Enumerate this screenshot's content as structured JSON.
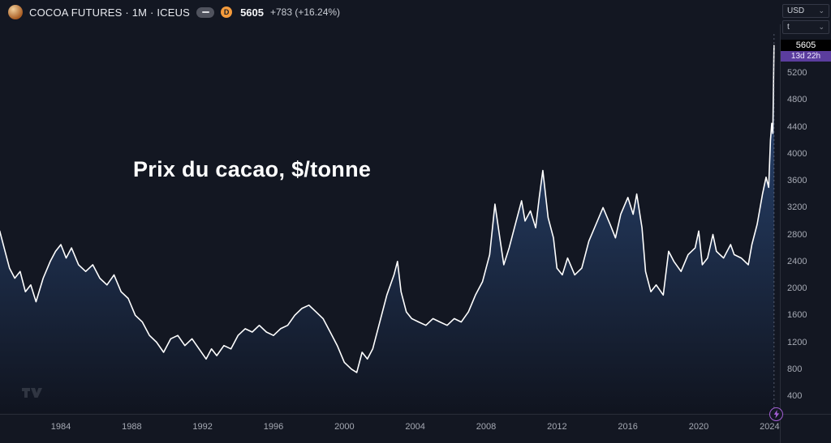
{
  "toolbar": {
    "symbol_title": "COCOA FUTURES · 1M · ICEUS",
    "delayed_badge": "D",
    "last_price": "5605",
    "change": "+783 (+16.24%)"
  },
  "dropdowns": {
    "currency": "USD",
    "unit": "t"
  },
  "price_scale": {
    "last": "5605",
    "countdown": "13d 22h"
  },
  "overlay": {
    "title": "Prix du cacao, $/tonne"
  },
  "colors": {
    "background": "#131722",
    "line": "#ffffff",
    "fill_top": "#2c4b7c",
    "fill_bottom": "#10141f",
    "accent_purple": "#a55fd6",
    "delayed_orange": "#f59b3c",
    "countdown_bg": "#5b3d9e",
    "axis_text": "#a6aab4"
  },
  "chart_data": {
    "type": "area",
    "name": "COCOA FUTURES · 1M · ICEUS",
    "title": "Prix du cacao, $/tonne",
    "unit": "USD/tonne",
    "grid": false,
    "last_value": 5605,
    "ylim": [
      300,
      5750
    ],
    "xlim": [
      1980.5,
      2024.6
    ],
    "y_ticks": [
      5200,
      4800,
      4400,
      4000,
      3600,
      3200,
      2800,
      2400,
      2000,
      1600,
      1200,
      800,
      400
    ],
    "x_ticks": [
      "1980",
      "1984",
      "1988",
      "1992",
      "1996",
      "2000",
      "2004",
      "2008",
      "2012",
      "2016",
      "2020",
      "2024"
    ],
    "x": [
      1980.55,
      1980.8,
      1981.1,
      1981.4,
      1981.7,
      1982.0,
      1982.3,
      1982.6,
      1983.0,
      1983.4,
      1983.7,
      1984.0,
      1984.3,
      1984.6,
      1985.0,
      1985.4,
      1985.8,
      1986.2,
      1986.6,
      1987.0,
      1987.4,
      1987.8,
      1988.2,
      1988.6,
      1989.0,
      1989.4,
      1989.8,
      1990.2,
      1990.6,
      1991.0,
      1991.4,
      1991.8,
      1992.2,
      1992.5,
      1992.8,
      1993.2,
      1993.6,
      1994.0,
      1994.4,
      1994.8,
      1995.2,
      1995.6,
      1996.0,
      1996.4,
      1996.8,
      1997.2,
      1997.6,
      1998.0,
      1998.4,
      1998.8,
      1999.2,
      1999.6,
      2000.0,
      2000.4,
      2000.7,
      2001.0,
      2001.3,
      2001.6,
      2002.0,
      2002.4,
      2002.8,
      2003.0,
      2003.2,
      2003.5,
      2003.8,
      2004.2,
      2004.6,
      2005.0,
      2005.4,
      2005.8,
      2006.2,
      2006.6,
      2007.0,
      2007.4,
      2007.8,
      2008.2,
      2008.5,
      2008.8,
      2009.0,
      2009.3,
      2009.6,
      2010.0,
      2010.2,
      2010.5,
      2010.8,
      2011.0,
      2011.2,
      2011.5,
      2011.8,
      2012.0,
      2012.3,
      2012.6,
      2013.0,
      2013.4,
      2013.8,
      2014.2,
      2014.6,
      2015.0,
      2015.3,
      2015.6,
      2016.0,
      2016.3,
      2016.5,
      2016.8,
      2017.0,
      2017.3,
      2017.6,
      2018.0,
      2018.3,
      2018.6,
      2019.0,
      2019.4,
      2019.8,
      2020.0,
      2020.2,
      2020.5,
      2020.8,
      2021.0,
      2021.4,
      2021.8,
      2022.0,
      2022.4,
      2022.8,
      2023.0,
      2023.3,
      2023.6,
      2023.8,
      2023.95,
      2024.05,
      2024.12,
      2024.18,
      2024.25
    ],
    "values": [
      2850,
      2600,
      2300,
      2150,
      2250,
      1950,
      2050,
      1800,
      2150,
      2400,
      2550,
      2650,
      2450,
      2600,
      2350,
      2250,
      2350,
      2150,
      2050,
      2200,
      1950,
      1850,
      1600,
      1500,
      1300,
      1200,
      1050,
      1250,
      1300,
      1150,
      1250,
      1100,
      950,
      1100,
      1000,
      1150,
      1100,
      1300,
      1400,
      1350,
      1450,
      1350,
      1300,
      1400,
      1450,
      1600,
      1700,
      1750,
      1650,
      1550,
      1350,
      1150,
      900,
      800,
      750,
      1050,
      950,
      1100,
      1500,
      1900,
      2200,
      2400,
      1950,
      1650,
      1550,
      1500,
      1450,
      1550,
      1500,
      1450,
      1550,
      1500,
      1650,
      1900,
      2100,
      2500,
      3250,
      2700,
      2350,
      2600,
      2900,
      3300,
      3000,
      3150,
      2900,
      3350,
      3750,
      3050,
      2750,
      2300,
      2200,
      2450,
      2200,
      2300,
      2700,
      2950,
      3200,
      2950,
      2750,
      3100,
      3350,
      3100,
      3400,
      2900,
      2250,
      1950,
      2050,
      1900,
      2550,
      2400,
      2250,
      2500,
      2600,
      2850,
      2350,
      2450,
      2800,
      2550,
      2450,
      2650,
      2500,
      2450,
      2350,
      2650,
      2950,
      3400,
      3650,
      3500,
      4200,
      4450,
      4300,
      5605
    ]
  }
}
